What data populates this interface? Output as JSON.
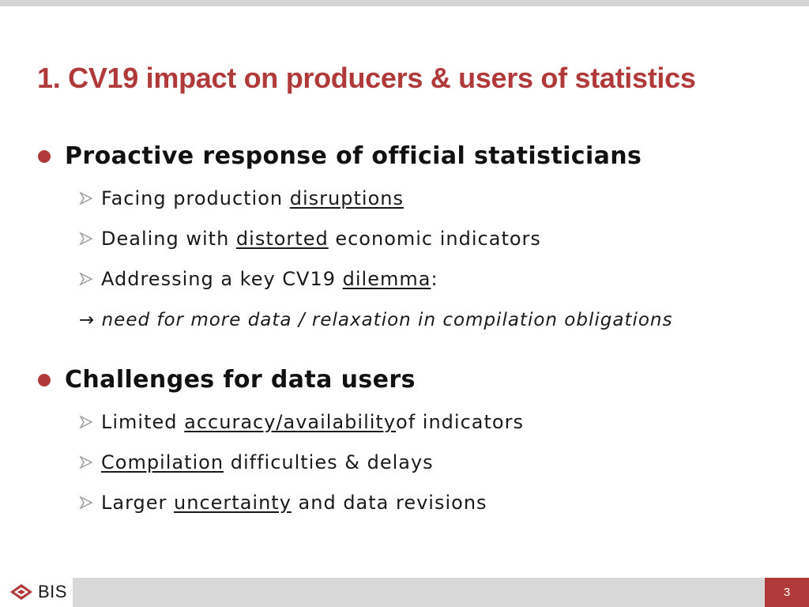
{
  "title": "1. CV19 impact on producers & users of statistics",
  "sections": [
    {
      "heading": "Proactive response of official statisticians",
      "items": [
        {
          "pre": "Facing production ",
          "u": "disruptions",
          "post": ""
        },
        {
          "pre": "Dealing with ",
          "u": "distorted",
          "post": " economic indicators"
        },
        {
          "pre": "Addressing a key CV19 ",
          "u": "dilemma",
          "post": ":"
        }
      ],
      "note_arrow": "→",
      "note": "need for more data / relaxation in compilation obligations"
    },
    {
      "heading": "Challenges for data users",
      "items": [
        {
          "pre": "Limited ",
          "u": "accuracy/availability ",
          "post": "of indicators"
        },
        {
          "pre": "",
          "u": "Compilation",
          "post": " difficulties & delays"
        },
        {
          "pre": "Larger ",
          "u": "uncertainty",
          "post": " and data revisions"
        }
      ]
    }
  ],
  "footer": {
    "logo_text": "BIS",
    "page_number": "3"
  },
  "colors": {
    "accent": "#b03a3a",
    "footer_bar": "#d8d8d8",
    "top_bar": "#d4d4d4"
  }
}
